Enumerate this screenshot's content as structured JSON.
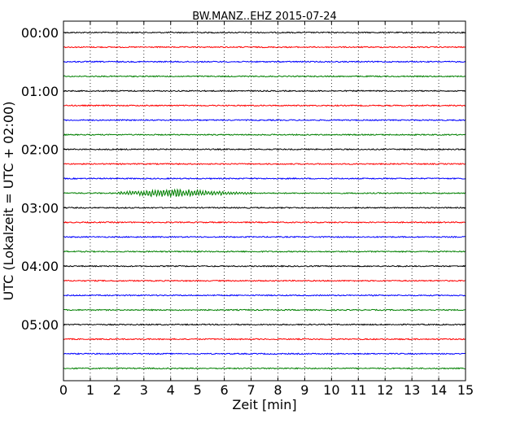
{
  "chart_data": {
    "type": "line",
    "title": "BW.MANZ..EHZ 2015-07-24",
    "xlabel": "Zeit  [min]",
    "ylabel": "UTC (Lokalzeit = UTC + 02:00)",
    "xlim": [
      0,
      15
    ],
    "x_ticks": [
      "0",
      "1",
      "2",
      "3",
      "4",
      "5",
      "6",
      "7",
      "8",
      "9",
      "10",
      "11",
      "12",
      "13",
      "14",
      "15"
    ],
    "y_tick_labels": [
      "00:00",
      "01:00",
      "02:00",
      "03:00",
      "04:00",
      "05:00"
    ],
    "grid": "vertical dotted",
    "trace_color_cycle": [
      "#000000",
      "#ff0000",
      "#0000ff",
      "#008000"
    ],
    "traces": [
      {
        "label": "00:00"
      },
      {
        "label": "00:15"
      },
      {
        "label": "00:30"
      },
      {
        "label": "00:45"
      },
      {
        "label": "01:00"
      },
      {
        "label": "01:15"
      },
      {
        "label": "01:30"
      },
      {
        "label": "01:45"
      },
      {
        "label": "02:00"
      },
      {
        "label": "02:15"
      },
      {
        "label": "02:30"
      },
      {
        "label": "02:45"
      },
      {
        "label": "03:00"
      },
      {
        "label": "03:15"
      },
      {
        "label": "03:30"
      },
      {
        "label": "03:45"
      },
      {
        "label": "04:00"
      },
      {
        "label": "04:15"
      },
      {
        "label": "04:30"
      },
      {
        "label": "04:45"
      },
      {
        "label": "05:00"
      },
      {
        "label": "05:15"
      },
      {
        "label": "05:30"
      },
      {
        "label": "05:45"
      }
    ],
    "events": [
      {
        "trace": "02:45",
        "start_min": 2.0,
        "end_min": 7.1,
        "peak_min": 4.1
      }
    ]
  }
}
